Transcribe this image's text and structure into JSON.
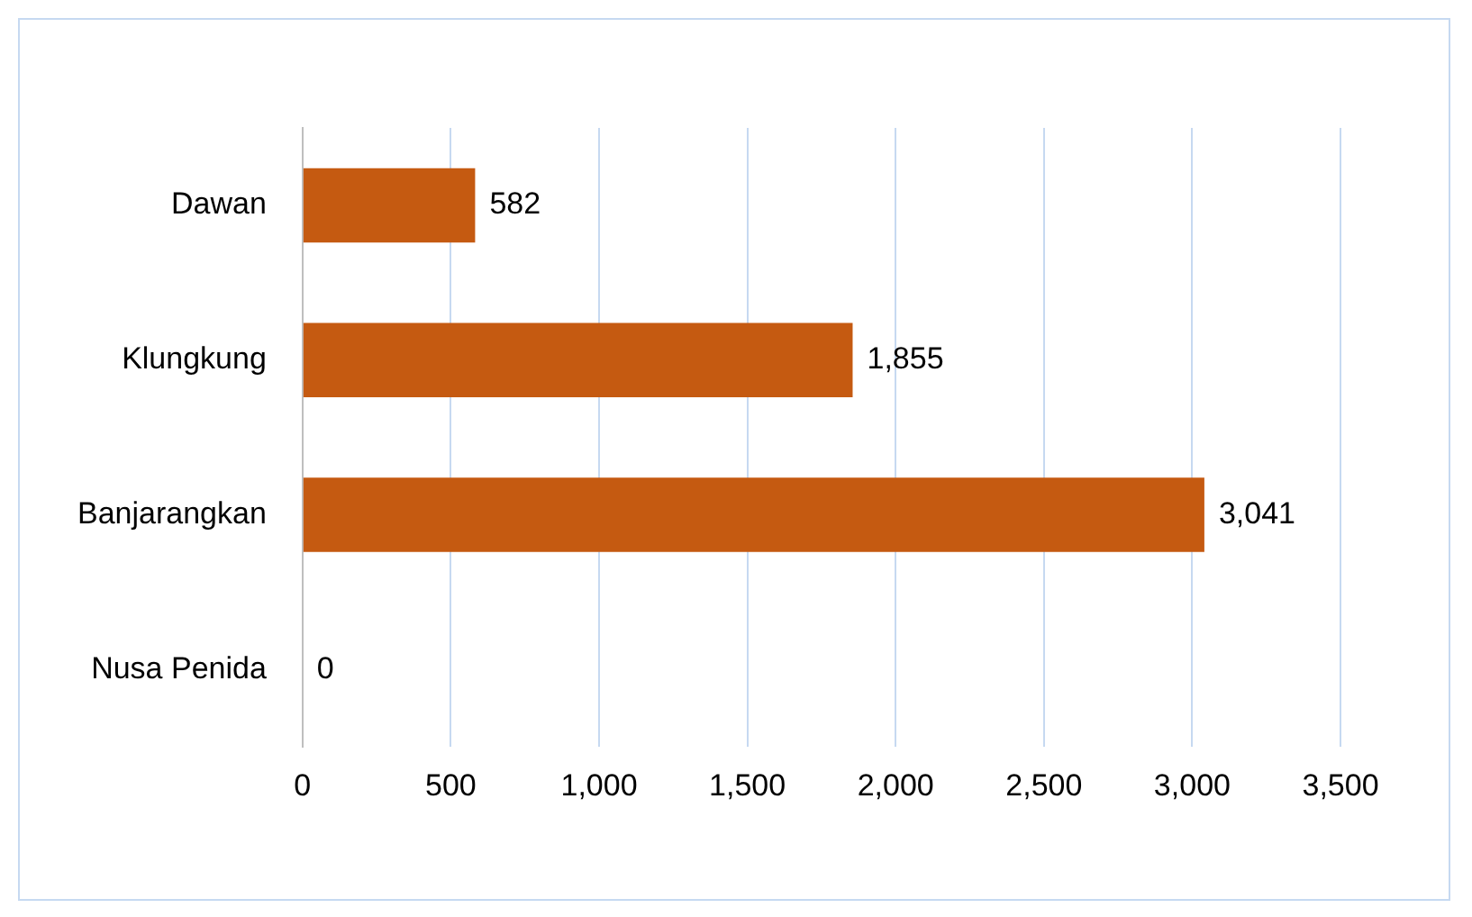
{
  "chart_data": {
    "type": "bar",
    "orientation": "horizontal",
    "categories": [
      "Dawan",
      "Klungkung",
      "Banjarangkan",
      "Nusa Penida"
    ],
    "values": [
      582,
      1855,
      3041,
      0
    ],
    "value_labels": [
      "582",
      "1,855",
      "3,041",
      "0"
    ],
    "color": "#c55a11",
    "xlim": [
      0,
      3500
    ],
    "xticks": [
      0,
      500,
      {
        "value": 1000,
        "label": "1,000"
      },
      {
        "value": 1500,
        "label": "1,500"
      },
      {
        "value": 2000,
        "label": "2,000"
      },
      {
        "value": 2500,
        "label": "2,500"
      },
      {
        "value": 3000,
        "label": "3,000"
      },
      {
        "value": 3500,
        "label": "3,500"
      }
    ],
    "grid": "x",
    "legend": false
  }
}
